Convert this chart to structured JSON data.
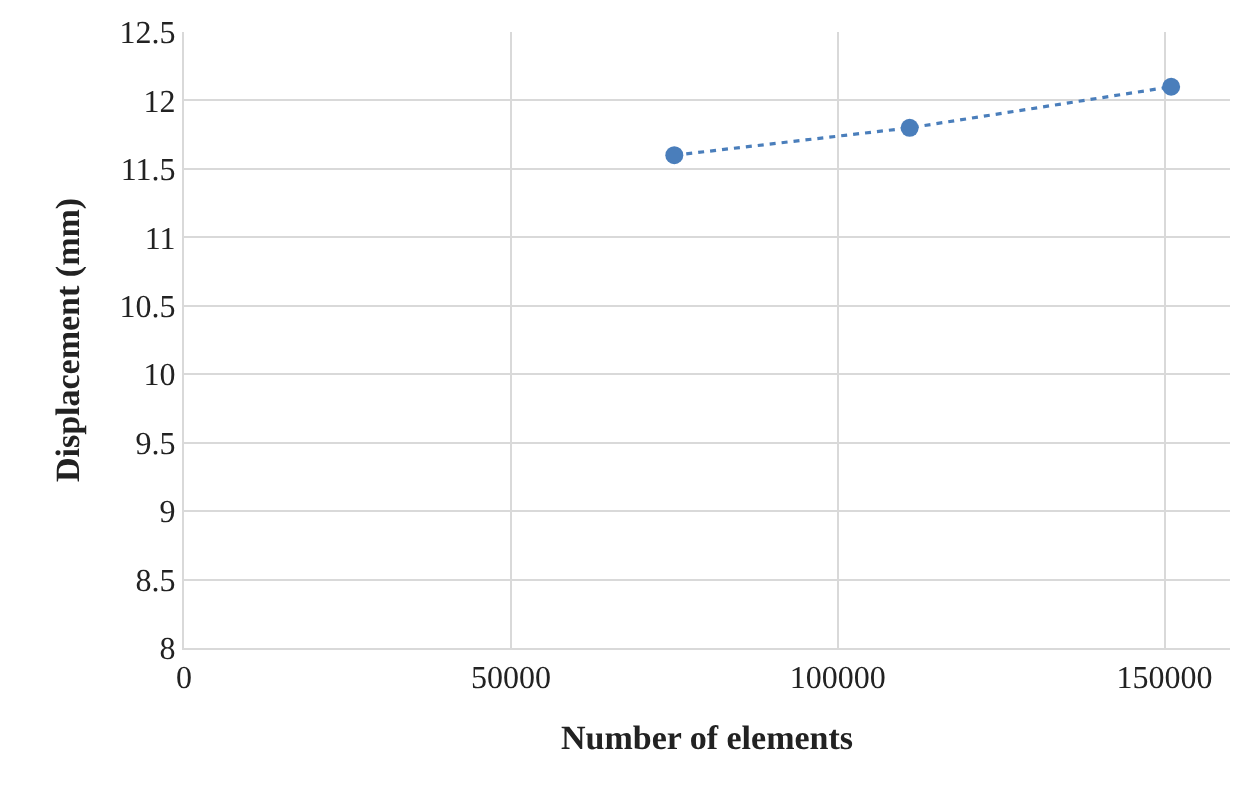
{
  "chart_data": {
    "type": "line",
    "xlabel": "Number of elements",
    "ylabel": "Displacement (mm)",
    "x": [
      75000,
      111000,
      151000
    ],
    "series": [
      {
        "color": "#4a7ebb",
        "values": [
          11.6,
          11.8,
          12.1
        ]
      }
    ],
    "marker": "circle",
    "line_style": "dotted",
    "xlim": [
      0,
      160000
    ],
    "xticks": [
      0,
      50000,
      100000,
      150000
    ],
    "ylim": [
      8,
      12.5
    ],
    "yticks": [
      8,
      8.5,
      9,
      9.5,
      10,
      10.5,
      11,
      11.5,
      12,
      12.5
    ],
    "grid": true,
    "legend": false
  }
}
